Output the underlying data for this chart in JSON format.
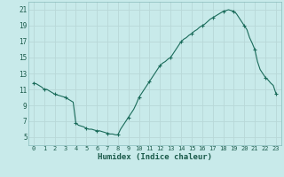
{
  "title": "",
  "xlabel": "Humidex (Indice chaleur)",
  "ylabel": "",
  "background_color": "#c8eaea",
  "grid_color": "#b8d8d8",
  "line_color": "#1a6b5a",
  "marker_color": "#1a6b5a",
  "xlim": [
    -0.5,
    23.5
  ],
  "ylim": [
    4,
    22
  ],
  "yticks": [
    5,
    7,
    9,
    11,
    13,
    15,
    17,
    19,
    21
  ],
  "xticks": [
    0,
    1,
    2,
    3,
    4,
    5,
    6,
    7,
    8,
    9,
    10,
    11,
    12,
    13,
    14,
    15,
    16,
    17,
    18,
    19,
    20,
    21,
    22,
    23
  ],
  "x": [
    0,
    0.25,
    0.5,
    0.75,
    1,
    1.25,
    1.5,
    1.75,
    2,
    2.25,
    2.5,
    2.75,
    3,
    3.25,
    3.5,
    3.75,
    4,
    4.25,
    4.5,
    4.75,
    5,
    5.25,
    5.5,
    5.75,
    6,
    6.25,
    6.5,
    6.75,
    7,
    7.25,
    7.5,
    7.75,
    8,
    8.25,
    8.5,
    8.75,
    9,
    9.25,
    9.5,
    9.75,
    10,
    10.25,
    10.5,
    10.75,
    11,
    11.25,
    11.5,
    11.75,
    12,
    12.25,
    12.5,
    12.75,
    13,
    13.25,
    13.5,
    13.75,
    14,
    14.25,
    14.5,
    14.75,
    15,
    15.25,
    15.5,
    15.75,
    16,
    16.25,
    16.5,
    16.75,
    17,
    17.25,
    17.5,
    17.75,
    18,
    18.25,
    18.5,
    18.75,
    19,
    19.25,
    19.5,
    19.75,
    20,
    20.25,
    20.5,
    20.75,
    21,
    21.25,
    21.5,
    21.75,
    22,
    22.25,
    22.5,
    22.75,
    23
  ],
  "y": [
    11.8,
    11.7,
    11.5,
    11.3,
    11.0,
    11.0,
    10.8,
    10.6,
    10.4,
    10.3,
    10.2,
    10.1,
    10.0,
    9.8,
    9.6,
    9.4,
    6.8,
    6.5,
    6.4,
    6.3,
    6.1,
    6.0,
    6.0,
    5.9,
    5.8,
    5.8,
    5.7,
    5.6,
    5.5,
    5.4,
    5.4,
    5.3,
    5.3,
    6.0,
    6.5,
    7.0,
    7.5,
    8.0,
    8.5,
    9.2,
    10.0,
    10.5,
    11.0,
    11.5,
    12.0,
    12.5,
    13.0,
    13.5,
    14.0,
    14.3,
    14.5,
    14.8,
    15.0,
    15.5,
    16.0,
    16.5,
    17.0,
    17.3,
    17.5,
    17.8,
    18.0,
    18.3,
    18.5,
    18.8,
    19.0,
    19.2,
    19.5,
    19.8,
    20.0,
    20.2,
    20.4,
    20.6,
    20.8,
    20.9,
    21.0,
    20.9,
    20.8,
    20.5,
    20.0,
    19.5,
    19.0,
    18.5,
    17.5,
    16.8,
    16.0,
    14.5,
    13.5,
    13.0,
    12.5,
    12.2,
    11.8,
    11.5,
    10.5
  ],
  "marker_x": [
    0,
    1,
    2,
    3,
    4,
    5,
    6,
    7,
    8,
    9,
    10,
    11,
    12,
    13,
    14,
    15,
    16,
    17,
    18,
    19,
    20,
    21,
    22,
    23
  ],
  "marker_y": [
    11.8,
    11.0,
    10.4,
    10.0,
    6.8,
    6.1,
    5.8,
    5.5,
    5.3,
    7.5,
    10.0,
    12.0,
    14.0,
    15.0,
    17.0,
    18.0,
    19.0,
    20.0,
    20.8,
    20.8,
    19.0,
    16.0,
    12.5,
    10.5
  ]
}
